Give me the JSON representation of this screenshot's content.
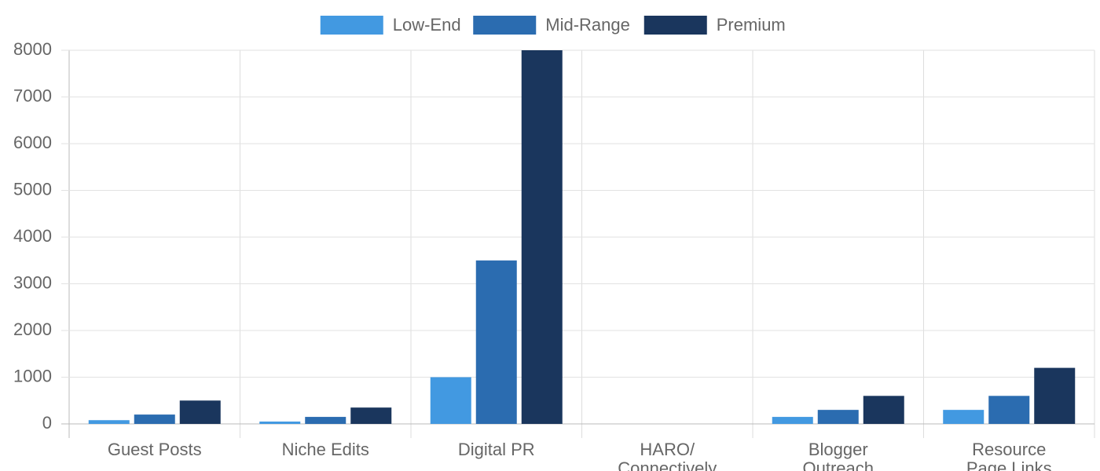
{
  "chart_data": {
    "type": "bar",
    "categories": [
      "Guest Posts",
      "Niche Edits",
      "Digital PR",
      [
        "HARO/",
        "Connectively"
      ],
      [
        "Blogger",
        "Outreach"
      ],
      [
        "Resource",
        "Page Links"
      ]
    ],
    "series": [
      {
        "name": "Low-End",
        "color": "#4299e1",
        "values": [
          80,
          50,
          1000,
          0,
          150,
          300
        ]
      },
      {
        "name": "Mid-Range",
        "color": "#2b6cb0",
        "values": [
          200,
          150,
          3500,
          0,
          300,
          600
        ]
      },
      {
        "name": "Premium",
        "color": "#1a365d",
        "values": [
          500,
          350,
          8000,
          0,
          600,
          1200
        ]
      }
    ],
    "ylim": [
      0,
      8000
    ],
    "yticks": [
      0,
      1000,
      2000,
      3000,
      4000,
      5000,
      6000,
      7000,
      8000
    ],
    "grid": true,
    "legend": "top"
  }
}
